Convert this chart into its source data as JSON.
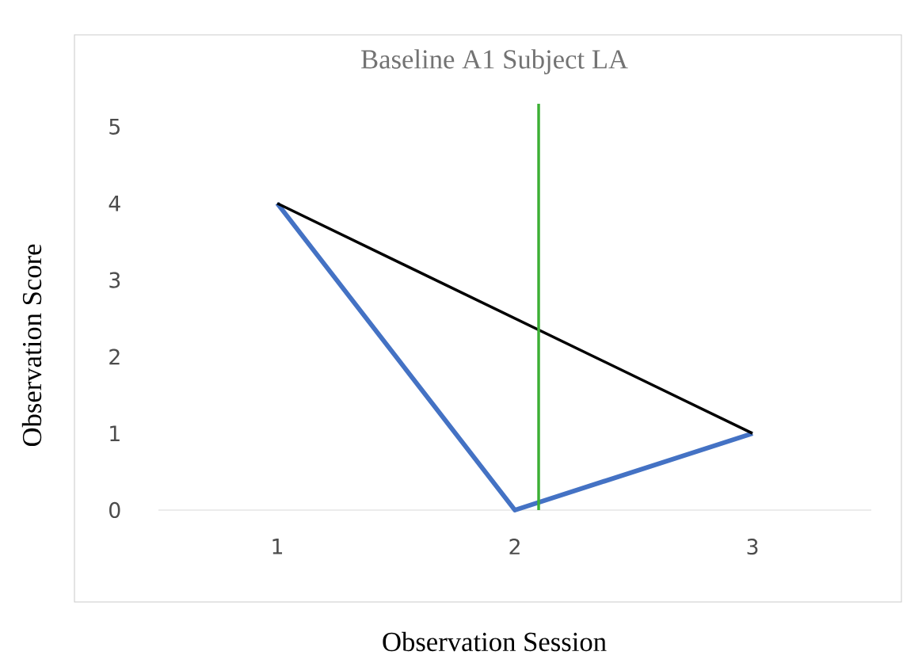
{
  "chart_data": {
    "type": "line",
    "title": "Baseline A1 Subject LA",
    "xlabel": "Observation Session",
    "ylabel": "Observation Score",
    "x": [
      1,
      2,
      3
    ],
    "xlim": [
      0.5,
      3.5
    ],
    "xticks": [
      1,
      2,
      3
    ],
    "ylim": [
      0,
      5
    ],
    "yticks": [
      0,
      1,
      2,
      3,
      4,
      5
    ],
    "series": [
      {
        "color": "#4472c4",
        "values": [
          4,
          0,
          1
        ]
      },
      {
        "type": "line",
        "x": [
          1,
          3
        ],
        "color": "#000000",
        "values": [
          4,
          1
        ]
      }
    ],
    "ref_lines": [
      {
        "axis": "x",
        "value": 2.1,
        "color": "#3cb035"
      }
    ],
    "marker": "none",
    "line_style": "solid"
  }
}
